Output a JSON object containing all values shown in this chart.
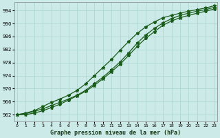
{
  "title": "Graphe pression niveau de la mer (hPa)",
  "bg_color": "#cceae8",
  "grid_color": "#aad4d2",
  "line_color": "#1a5c1a",
  "x_ticks": [
    0,
    1,
    2,
    3,
    4,
    5,
    6,
    7,
    8,
    9,
    10,
    11,
    12,
    13,
    14,
    15,
    16,
    17,
    18,
    19,
    20,
    21,
    22,
    23
  ],
  "y_ticks": [
    962,
    966,
    970,
    974,
    978,
    982,
    986,
    990,
    994
  ],
  "ylim": [
    960.0,
    996.5
  ],
  "xlim": [
    -0.3,
    23.3
  ],
  "series1": [
    962.0,
    962.3,
    963.0,
    963.8,
    964.8,
    965.8,
    966.8,
    968.0,
    969.5,
    971.5,
    973.5,
    975.8,
    978.2,
    981.0,
    984.0,
    986.5,
    988.5,
    990.2,
    991.5,
    992.5,
    993.2,
    993.8,
    994.3,
    995.0
  ],
  "series2": [
    962.0,
    962.5,
    963.2,
    964.5,
    965.8,
    966.8,
    968.0,
    969.5,
    971.5,
    974.0,
    976.5,
    979.0,
    981.8,
    984.5,
    987.0,
    989.0,
    990.5,
    991.8,
    992.5,
    993.2,
    993.8,
    994.3,
    994.8,
    995.5
  ],
  "series3": [
    962.0,
    962.0,
    962.5,
    963.2,
    964.2,
    965.2,
    966.5,
    967.8,
    969.2,
    971.0,
    973.0,
    975.2,
    977.5,
    980.2,
    983.0,
    985.5,
    987.5,
    989.5,
    990.8,
    991.8,
    992.5,
    993.2,
    993.8,
    994.5
  ]
}
